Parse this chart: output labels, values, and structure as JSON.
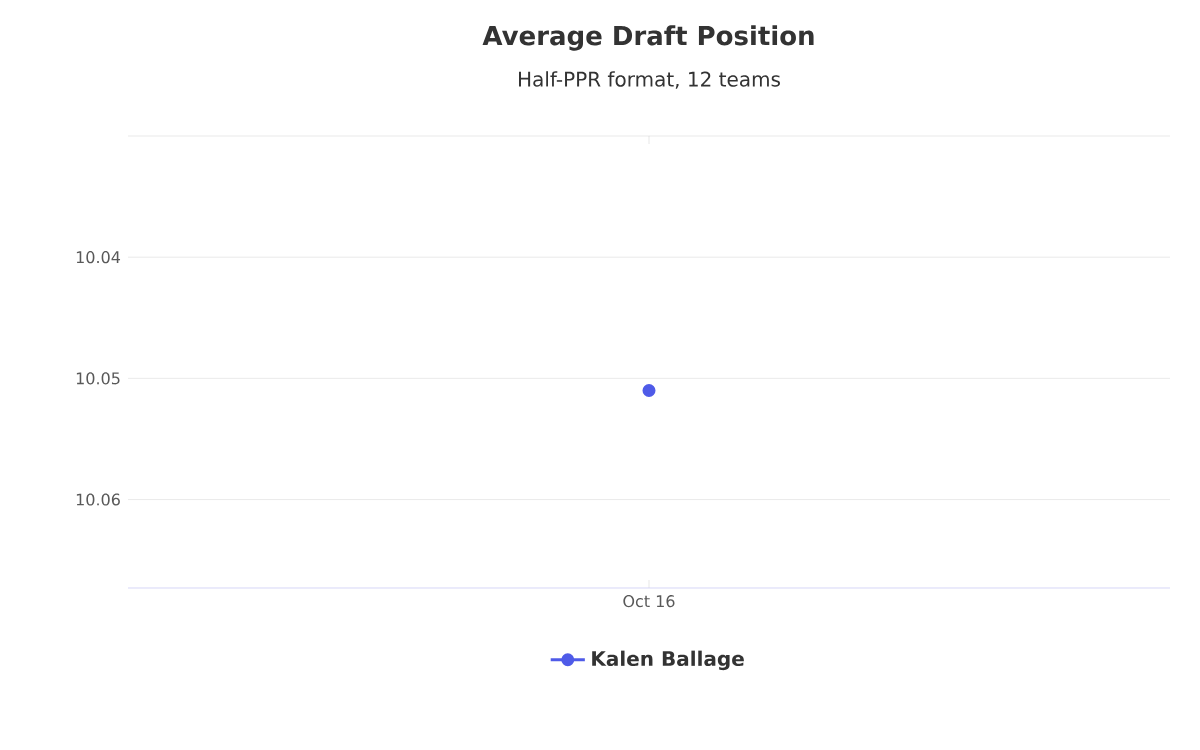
{
  "chart_data": {
    "type": "line",
    "title": "Average Draft Position",
    "subtitle": "Half-PPR format, 12 teams",
    "categories": [
      "Oct 16"
    ],
    "series": [
      {
        "name": "Kalen Ballage",
        "color": "#4f5be8",
        "values": [
          10.051
        ]
      }
    ],
    "ylim": [
      10.0673,
      10.03
    ],
    "yticks": [
      {
        "value": 10.03,
        "label": null
      },
      10.04,
      10.05,
      10.06
    ],
    "grid": "y",
    "legend": "bottom",
    "marker": "circle"
  }
}
